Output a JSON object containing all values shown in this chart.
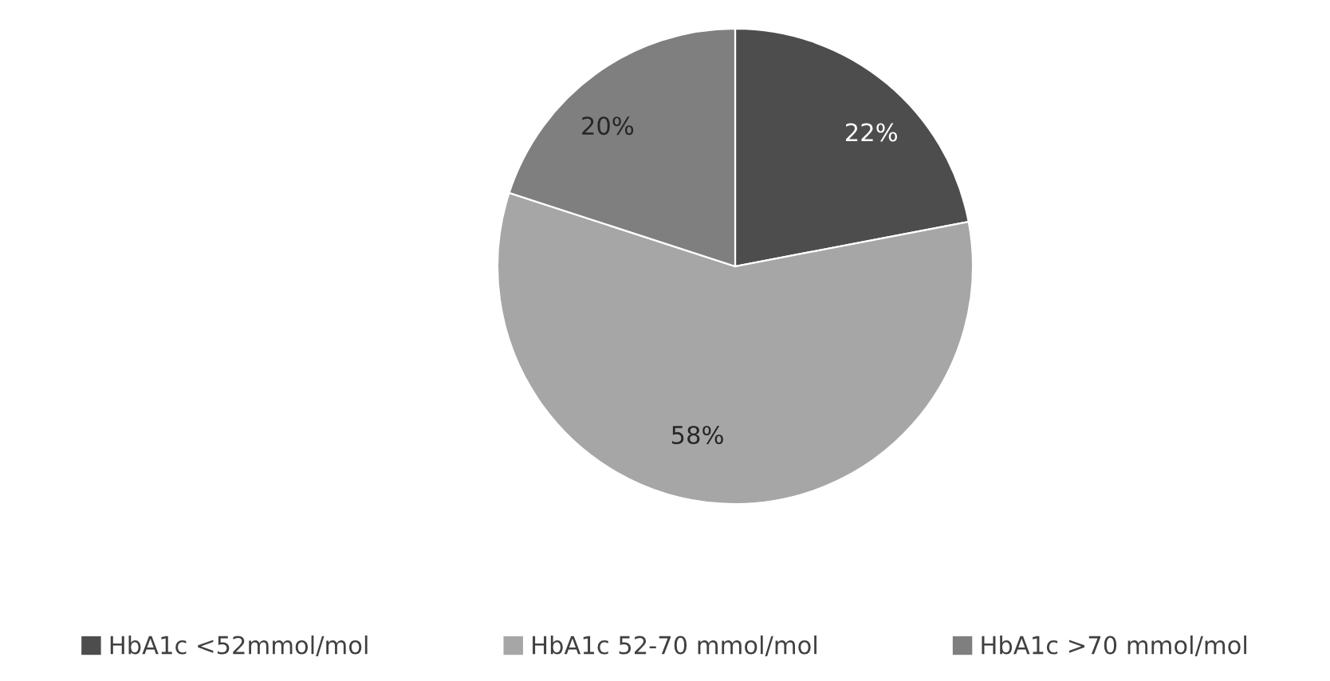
{
  "chart_data": {
    "type": "pie",
    "categories": [
      "HbA1c <52mmol/mol",
      "HbA1c 52-70 mmol/mol",
      "HbA1c >70 mmol/mol"
    ],
    "values": [
      22,
      58,
      20
    ],
    "colors": [
      "#4d4d4d",
      "#a6a6a6",
      "#7f7f7f"
    ],
    "value_labels": [
      "22%",
      "58%",
      "20%"
    ],
    "legend": "bottom"
  }
}
